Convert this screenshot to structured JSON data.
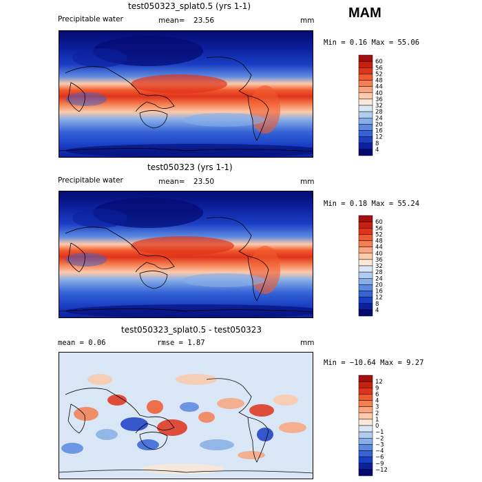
{
  "season": "MAM",
  "panels": [
    {
      "id": "top",
      "title": "test050323_splat0.5 (yrs 1-1)",
      "left_label": "Precipitable water",
      "mean_label": "mean=",
      "mean_value": "23.56",
      "units": "mm",
      "range_text": "Min =    0.16 Max =   55.06"
    },
    {
      "id": "middle",
      "title": "test050323 (yrs 1-1)",
      "left_label": "Precipitable water",
      "mean_label": "mean=",
      "mean_value": "23.50",
      "units": "mm",
      "range_text": "Min =    0.18 Max =   55.24"
    },
    {
      "id": "bottom",
      "title": "test050323_splat0.5 - test050323",
      "left_label": "mean =    0.06",
      "rmse_text": "rmse =    1.87",
      "units": "mm",
      "range_text": "Min = −10.64 Max =    9.27"
    }
  ],
  "chart_data": [
    {
      "type": "heatmap",
      "title": "test050323_splat0.5 (yrs 1-1)",
      "variable": "Precipitable water",
      "units": "mm",
      "mean": 23.56,
      "min": 0.16,
      "max": 55.06,
      "colorbar_levels": [
        60,
        56,
        52,
        48,
        44,
        40,
        36,
        32,
        28,
        24,
        20,
        16,
        12,
        8,
        4
      ],
      "colorbar_colors": [
        "#a50f0f",
        "#c8200e",
        "#e0331a",
        "#f05a2d",
        "#f57f51",
        "#f9a57f",
        "#fcc9aa",
        "#fbe8d8",
        "#d8e6f5",
        "#b0ccef",
        "#87aee8",
        "#5b88e0",
        "#3563d6",
        "#1a3fc4",
        "#0c1f9c",
        "#040a70"
      ]
    },
    {
      "type": "heatmap",
      "title": "test050323 (yrs 1-1)",
      "variable": "Precipitable water",
      "units": "mm",
      "mean": 23.5,
      "min": 0.18,
      "max": 55.24,
      "colorbar_levels": [
        60,
        56,
        52,
        48,
        44,
        40,
        36,
        32,
        28,
        24,
        20,
        16,
        12,
        8,
        4
      ],
      "colorbar_colors": [
        "#a50f0f",
        "#c8200e",
        "#e0331a",
        "#f05a2d",
        "#f57f51",
        "#f9a57f",
        "#fcc9aa",
        "#fbe8d8",
        "#d8e6f5",
        "#b0ccef",
        "#87aee8",
        "#5b88e0",
        "#3563d6",
        "#1a3fc4",
        "#0c1f9c",
        "#040a70"
      ]
    },
    {
      "type": "heatmap",
      "title": "test050323_splat0.5 - test050323",
      "units": "mm",
      "mean": 0.06,
      "rmse": 1.87,
      "min": -10.64,
      "max": 9.27,
      "colorbar_levels": [
        12,
        9,
        6,
        4,
        3,
        2,
        1,
        0,
        -1,
        -2,
        -3,
        -4,
        -6,
        -9,
        -12
      ],
      "colorbar_level_labels": [
        "12",
        "9",
        "6",
        "4",
        "3",
        "2",
        "1",
        "0",
        "−1",
        "−2",
        "−3",
        "−4",
        "−6",
        "−9",
        "−12"
      ],
      "colorbar_colors": [
        "#a50f0f",
        "#c8200e",
        "#e0331a",
        "#f05a2d",
        "#f57f51",
        "#f9a57f",
        "#fcc9aa",
        "#fbe8d8",
        "#d8e6f5",
        "#b0ccef",
        "#87aee8",
        "#5b88e0",
        "#3563d6",
        "#1a3fc4",
        "#0c1f9c",
        "#040a70"
      ]
    }
  ]
}
